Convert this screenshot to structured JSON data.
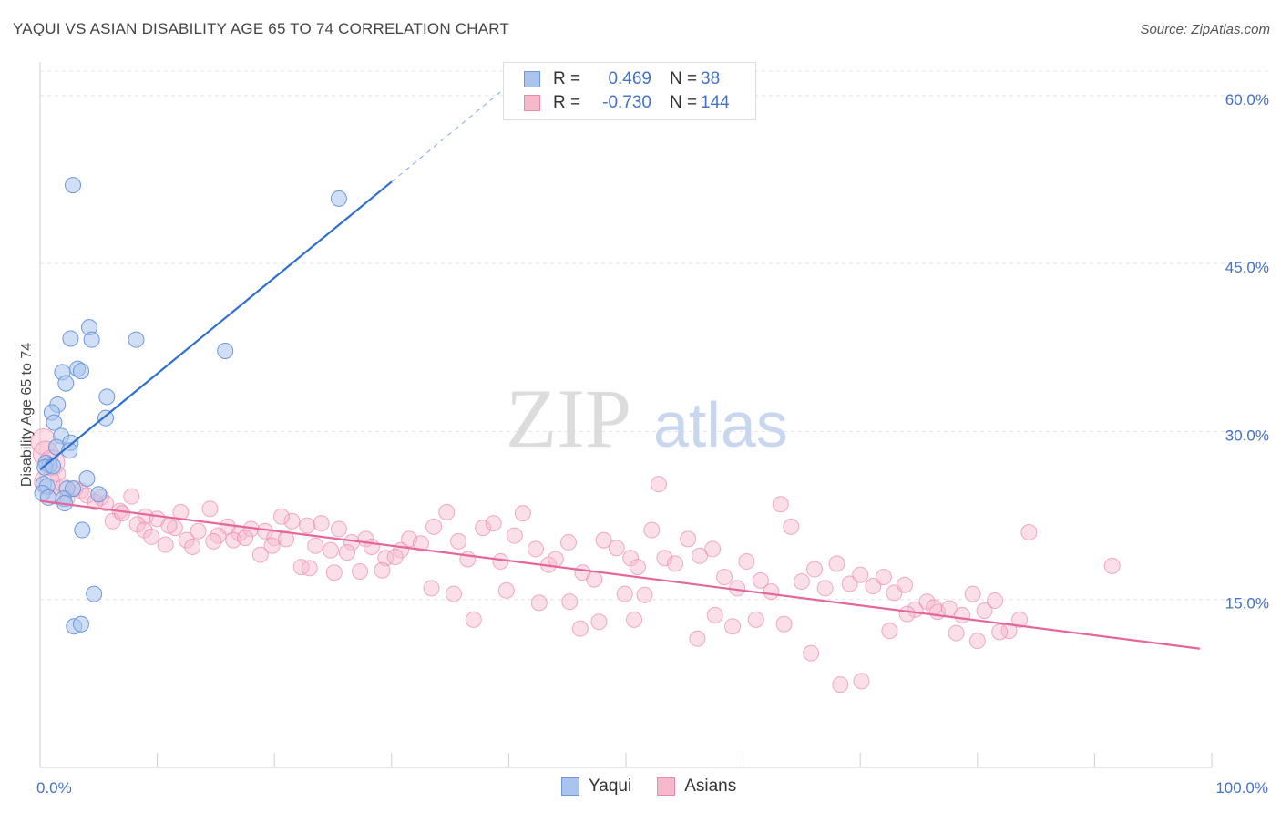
{
  "title": "YAQUI VS ASIAN DISABILITY AGE 65 TO 74 CORRELATION CHART",
  "source": "Source: ZipAtlas.com",
  "watermark": {
    "zip": "ZIP",
    "atlas": "atlas"
  },
  "colors": {
    "yaqui_fill": "#aac4ee",
    "yaqui_stroke": "#6d98dc",
    "yaqui_line": "#2f6fd0",
    "asian_fill": "#f6b8cb",
    "asian_stroke": "#e88aaa",
    "asian_line": "#e5679a",
    "tick_text": "#4472c4",
    "grid": "#e4e4e4"
  },
  "legend": {
    "rows": [
      {
        "r_label": "R =",
        "r_value": "0.469",
        "n_label": "N =",
        "n_value": "38"
      },
      {
        "r_label": "R =",
        "r_value": "-0.730",
        "n_label": "N =",
        "n_value": "144"
      }
    ]
  },
  "bottom_legend": [
    "Yaqui",
    "Asians"
  ],
  "chart_data": {
    "type": "scatter",
    "xlabel": "",
    "ylabel": "Disability Age 65 to 74",
    "xlim": [
      0,
      100
    ],
    "ylim": [
      0,
      63
    ],
    "x_tick_labels": [
      {
        "value": 0,
        "label": "0.0%"
      },
      {
        "value": 100,
        "label": "100.0%"
      }
    ],
    "y_ticks": [
      {
        "value": 15,
        "label": "15.0%"
      },
      {
        "value": 30,
        "label": "30.0%"
      },
      {
        "value": 45,
        "label": "45.0%"
      },
      {
        "value": 60,
        "label": "60.0%"
      }
    ],
    "grid": "horizontal dashed",
    "series": [
      {
        "name": "Yaqui",
        "r": 0.469,
        "n": 38,
        "trend": {
          "x0": 0.0,
          "y0": 26.6,
          "x1": 30.0,
          "y1": 52.3,
          "dash_x1": 39.5,
          "dash_y1": 60.5
        },
        "points": [
          [
            2.8,
            52.0
          ],
          [
            25.5,
            50.8
          ],
          [
            4.2,
            39.3
          ],
          [
            2.6,
            38.3
          ],
          [
            4.4,
            38.2
          ],
          [
            8.2,
            38.2
          ],
          [
            15.8,
            37.2
          ],
          [
            1.9,
            35.3
          ],
          [
            3.2,
            35.6
          ],
          [
            3.5,
            35.4
          ],
          [
            2.2,
            34.3
          ],
          [
            5.7,
            33.1
          ],
          [
            1.5,
            32.4
          ],
          [
            1.0,
            31.7
          ],
          [
            5.6,
            31.2
          ],
          [
            1.2,
            30.8
          ],
          [
            1.8,
            29.6
          ],
          [
            2.6,
            29.0
          ],
          [
            1.4,
            28.6
          ],
          [
            2.5,
            28.3
          ],
          [
            0.5,
            27.2
          ],
          [
            0.8,
            27.0
          ],
          [
            0.4,
            26.8
          ],
          [
            1.1,
            26.9
          ],
          [
            4.0,
            25.8
          ],
          [
            0.3,
            25.3
          ],
          [
            0.6,
            25.1
          ],
          [
            2.3,
            24.9
          ],
          [
            2.8,
            24.9
          ],
          [
            0.2,
            24.5
          ],
          [
            5.0,
            24.4
          ],
          [
            0.7,
            24.1
          ],
          [
            2.0,
            24.0
          ],
          [
            2.1,
            23.6
          ],
          [
            3.6,
            21.2
          ],
          [
            4.6,
            15.5
          ],
          [
            2.9,
            12.6
          ],
          [
            3.5,
            12.8
          ]
        ]
      },
      {
        "name": "Asians",
        "r": -0.73,
        "n": 144,
        "trend": {
          "x0": 0.0,
          "y0": 23.8,
          "x1": 99.0,
          "y1": 10.6
        },
        "points": [
          [
            0.3,
            29.1
          ],
          [
            0.5,
            28.0
          ],
          [
            1.0,
            27.2
          ],
          [
            1.5,
            26.2
          ],
          [
            0.6,
            25.5
          ],
          [
            2.0,
            25.1
          ],
          [
            3.0,
            24.9
          ],
          [
            3.5,
            24.7
          ],
          [
            1.2,
            24.2
          ],
          [
            2.3,
            24.0
          ],
          [
            4.0,
            24.3
          ],
          [
            5.2,
            24.1
          ],
          [
            7.8,
            24.2
          ],
          [
            5.6,
            23.6
          ],
          [
            6.8,
            22.9
          ],
          [
            9.0,
            22.4
          ],
          [
            4.7,
            23.7
          ],
          [
            6.2,
            22.0
          ],
          [
            8.3,
            21.7
          ],
          [
            10.0,
            22.2
          ],
          [
            11.5,
            21.4
          ],
          [
            12.0,
            22.8
          ],
          [
            14.5,
            23.1
          ],
          [
            16.0,
            21.5
          ],
          [
            7.0,
            22.7
          ],
          [
            8.9,
            21.2
          ],
          [
            11.0,
            21.6
          ],
          [
            12.5,
            20.3
          ],
          [
            13.5,
            21.1
          ],
          [
            15.2,
            20.7
          ],
          [
            17.0,
            20.9
          ],
          [
            18.0,
            21.3
          ],
          [
            19.2,
            21.1
          ],
          [
            20.0,
            20.5
          ],
          [
            21.5,
            22.0
          ],
          [
            22.8,
            21.6
          ],
          [
            24.0,
            21.8
          ],
          [
            25.5,
            21.3
          ],
          [
            26.6,
            20.1
          ],
          [
            27.8,
            20.4
          ],
          [
            10.7,
            19.9
          ],
          [
            13.0,
            19.7
          ],
          [
            14.8,
            20.2
          ],
          [
            16.5,
            20.3
          ],
          [
            17.5,
            20.5
          ],
          [
            19.8,
            19.8
          ],
          [
            21.0,
            20.4
          ],
          [
            23.5,
            19.8
          ],
          [
            24.8,
            19.4
          ],
          [
            26.2,
            19.2
          ],
          [
            28.3,
            19.7
          ],
          [
            29.5,
            18.7
          ],
          [
            30.8,
            19.4
          ],
          [
            31.5,
            20.4
          ],
          [
            32.5,
            20.0
          ],
          [
            33.6,
            21.5
          ],
          [
            34.7,
            22.8
          ],
          [
            35.7,
            20.2
          ],
          [
            36.5,
            18.6
          ],
          [
            37.8,
            21.4
          ],
          [
            38.7,
            21.8
          ],
          [
            39.3,
            18.4
          ],
          [
            40.5,
            20.7
          ],
          [
            41.2,
            22.7
          ],
          [
            42.3,
            19.5
          ],
          [
            43.4,
            18.1
          ],
          [
            44.0,
            18.6
          ],
          [
            45.1,
            20.1
          ],
          [
            46.3,
            17.4
          ],
          [
            47.3,
            16.8
          ],
          [
            48.1,
            20.3
          ],
          [
            49.2,
            19.6
          ],
          [
            50.4,
            18.7
          ],
          [
            51.0,
            17.9
          ],
          [
            52.2,
            21.2
          ],
          [
            52.8,
            25.3
          ],
          [
            53.3,
            18.7
          ],
          [
            54.2,
            18.2
          ],
          [
            55.3,
            20.4
          ],
          [
            56.3,
            18.9
          ],
          [
            57.4,
            19.5
          ],
          [
            58.4,
            17.0
          ],
          [
            59.5,
            16.0
          ],
          [
            60.3,
            18.4
          ],
          [
            61.5,
            16.7
          ],
          [
            62.4,
            15.7
          ],
          [
            63.2,
            23.5
          ],
          [
            64.1,
            21.5
          ],
          [
            65.0,
            16.6
          ],
          [
            66.1,
            17.7
          ],
          [
            67.0,
            16.0
          ],
          [
            68.0,
            18.2
          ],
          [
            69.1,
            16.4
          ],
          [
            70.0,
            17.2
          ],
          [
            71.1,
            16.2
          ],
          [
            72.0,
            17.0
          ],
          [
            72.9,
            15.6
          ],
          [
            73.8,
            16.3
          ],
          [
            74.7,
            14.1
          ],
          [
            75.7,
            14.8
          ],
          [
            76.6,
            13.9
          ],
          [
            77.6,
            14.2
          ],
          [
            78.7,
            13.6
          ],
          [
            79.6,
            15.5
          ],
          [
            80.6,
            14.0
          ],
          [
            81.5,
            14.9
          ],
          [
            82.7,
            12.2
          ],
          [
            83.6,
            13.2
          ],
          [
            84.4,
            21.0
          ],
          [
            45.2,
            14.8
          ],
          [
            46.1,
            12.4
          ],
          [
            47.7,
            13.0
          ],
          [
            49.9,
            15.5
          ],
          [
            50.7,
            13.2
          ],
          [
            51.6,
            15.4
          ],
          [
            56.1,
            11.5
          ],
          [
            57.6,
            13.6
          ],
          [
            59.1,
            12.6
          ],
          [
            61.1,
            13.2
          ],
          [
            63.5,
            12.8
          ],
          [
            65.8,
            10.2
          ],
          [
            68.3,
            7.4
          ],
          [
            70.1,
            7.7
          ],
          [
            72.5,
            12.2
          ],
          [
            74.0,
            13.7
          ],
          [
            76.3,
            14.3
          ],
          [
            78.2,
            12.0
          ],
          [
            80.0,
            11.3
          ],
          [
            81.9,
            12.1
          ],
          [
            37.0,
            13.2
          ],
          [
            39.8,
            15.8
          ],
          [
            42.6,
            14.7
          ],
          [
            33.4,
            16.0
          ],
          [
            35.3,
            15.5
          ],
          [
            29.2,
            17.6
          ],
          [
            30.3,
            18.8
          ],
          [
            27.3,
            17.5
          ],
          [
            25.1,
            17.4
          ],
          [
            22.3,
            17.9
          ],
          [
            23.0,
            17.8
          ],
          [
            18.8,
            19.0
          ],
          [
            20.6,
            22.4
          ],
          [
            9.5,
            20.6
          ],
          [
            91.5,
            18.0
          ]
        ]
      }
    ]
  }
}
